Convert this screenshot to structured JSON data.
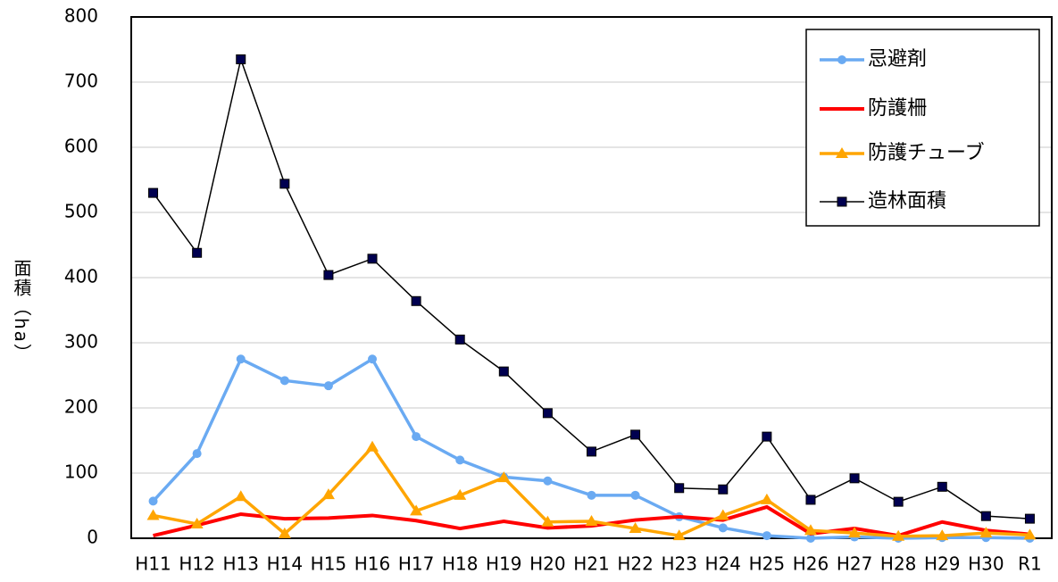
{
  "chart_data": {
    "type": "line",
    "y_label": "面積（ha）",
    "categories": [
      "H11",
      "H12",
      "H13",
      "H14",
      "H15",
      "H16",
      "H17",
      "H18",
      "H19",
      "H20",
      "H21",
      "H22",
      "H23",
      "H24",
      "H25",
      "H26",
      "H27",
      "H28",
      "H29",
      "H30",
      "R1"
    ],
    "series": [
      {
        "name": "忌避剤",
        "color": "#6aaaf2",
        "marker": "circle",
        "values": [
          57,
          130,
          275,
          242,
          234,
          275,
          156,
          120,
          94,
          88,
          66,
          66,
          33,
          16,
          4,
          0,
          2,
          0,
          1,
          1,
          0
        ]
      },
      {
        "name": "防護柵",
        "color": "#ff0000",
        "marker": "none",
        "values": [
          4,
          20,
          37,
          30,
          31,
          35,
          27,
          15,
          26,
          16,
          19,
          28,
          33,
          28,
          48,
          7,
          15,
          4,
          25,
          12,
          6
        ]
      },
      {
        "name": "防護チューブ",
        "color": "#ffa500",
        "marker": "triangle",
        "values": [
          35,
          22,
          64,
          7,
          67,
          140,
          42,
          66,
          93,
          25,
          26,
          15,
          4,
          35,
          59,
          12,
          8,
          3,
          4,
          8,
          5
        ]
      },
      {
        "name": "造林面積",
        "color": "#000000",
        "marker": "square",
        "values": [
          530,
          438,
          735,
          544,
          404,
          429,
          364,
          305,
          256,
          192,
          133,
          159,
          77,
          75,
          156,
          59,
          92,
          56,
          79,
          34,
          30
        ]
      }
    ],
    "ylim": [
      0,
      800
    ],
    "yticks": [
      0,
      100,
      200,
      300,
      400,
      500,
      600,
      700,
      800
    ],
    "grid": true,
    "legend": "upper right"
  }
}
